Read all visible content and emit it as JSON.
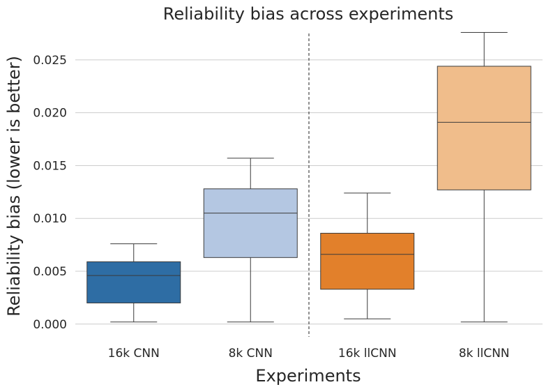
{
  "chart_data": {
    "type": "box",
    "title": "Reliability bias across experiments",
    "xlabel": "Experiments",
    "ylabel": "Reliability bias (lower is better)",
    "ylim": [
      -0.0012,
      0.0275
    ],
    "yticks": [
      0.0,
      0.005,
      0.01,
      0.015,
      0.02,
      0.025
    ],
    "ytick_labels": [
      "0.000",
      "0.005",
      "0.010",
      "0.015",
      "0.020",
      "0.025"
    ],
    "grid": true,
    "divider_after_category": 2,
    "categories": [
      "16k CNN",
      "8k CNN",
      "16k llCNN",
      "8k llCNN"
    ],
    "boxes": [
      {
        "name": "16k CNN",
        "whisker_low": 0.0002,
        "q1": 0.002,
        "median": 0.0046,
        "q3": 0.0059,
        "whisker_high": 0.0076,
        "color": "#2e6da4"
      },
      {
        "name": "8k CNN",
        "whisker_low": 0.0002,
        "q1": 0.0063,
        "median": 0.0105,
        "q3": 0.0128,
        "whisker_high": 0.0157,
        "color": "#b4c7e2"
      },
      {
        "name": "16k llCNN",
        "whisker_low": 0.0005,
        "q1": 0.0033,
        "median": 0.0066,
        "q3": 0.0086,
        "whisker_high": 0.0124,
        "color": "#e2802b"
      },
      {
        "name": "8k llCNN",
        "whisker_low": 0.0002,
        "q1": 0.0127,
        "median": 0.0191,
        "q3": 0.0244,
        "whisker_high": 0.0276,
        "color": "#f0bd8b"
      }
    ]
  }
}
